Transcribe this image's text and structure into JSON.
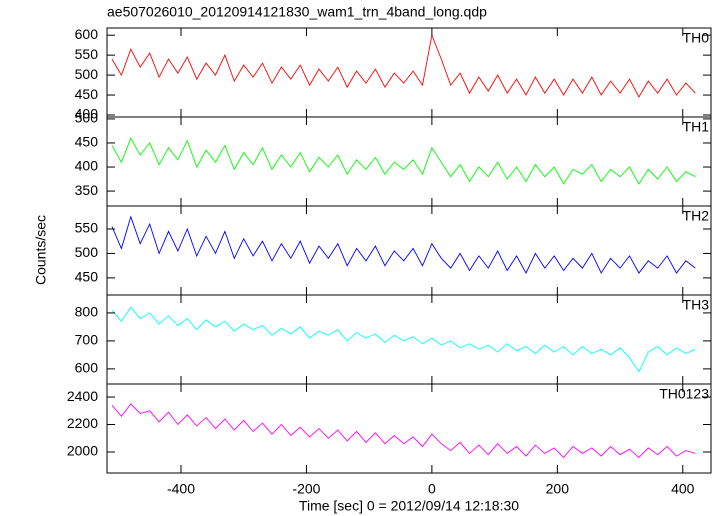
{
  "chart_data": {
    "type": "line",
    "title": "ae507026010_20120914121830_wam1_trn_4band_long.qdp",
    "xlabel": "Time [sec] 0 = 2012/09/14 12:18:30",
    "ylabel": "Counts/sec",
    "xlim": [
      -518,
      445
    ],
    "xticks": [
      -400,
      -200,
      0,
      200,
      400
    ],
    "x": [
      -510,
      -495,
      -480,
      -465,
      -450,
      -435,
      -420,
      -405,
      -390,
      -375,
      -360,
      -345,
      -330,
      -315,
      -300,
      -285,
      -270,
      -255,
      -240,
      -225,
      -210,
      -195,
      -180,
      -165,
      -150,
      -135,
      -120,
      -105,
      -90,
      -75,
      -60,
      -45,
      -30,
      -15,
      0,
      15,
      30,
      45,
      60,
      75,
      90,
      105,
      120,
      135,
      150,
      165,
      180,
      195,
      210,
      225,
      240,
      255,
      270,
      285,
      300,
      315,
      330,
      345,
      360,
      375,
      390,
      405,
      420
    ],
    "series": [
      {
        "name": "TH0",
        "color": "#ff0000",
        "ylim": [
          395,
          618
        ],
        "yticks": [
          400,
          450,
          500,
          550,
          600
        ],
        "values": [
          540,
          500,
          565,
          520,
          555,
          495,
          540,
          505,
          545,
          490,
          530,
          500,
          550,
          485,
          525,
          495,
          530,
          480,
          520,
          490,
          525,
          475,
          515,
          485,
          520,
          470,
          510,
          480,
          515,
          470,
          505,
          480,
          510,
          475,
          600,
          540,
          475,
          505,
          455,
          495,
          460,
          500,
          455,
          490,
          450,
          495,
          455,
          490,
          450,
          490,
          455,
          495,
          450,
          485,
          455,
          490,
          445,
          485,
          455,
          490,
          450,
          480,
          455
        ]
      },
      {
        "name": "TH1",
        "color": "#00ff00",
        "ylim": [
          319,
          504
        ],
        "yticks": [
          350,
          400,
          450,
          500
        ],
        "values": [
          445,
          410,
          460,
          425,
          450,
          405,
          440,
          415,
          455,
          400,
          435,
          410,
          445,
          395,
          430,
          405,
          440,
          395,
          425,
          400,
          430,
          390,
          420,
          400,
          425,
          385,
          415,
          395,
          420,
          385,
          410,
          395,
          415,
          385,
          440,
          410,
          380,
          405,
          370,
          400,
          380,
          410,
          375,
          400,
          370,
          405,
          380,
          400,
          365,
          395,
          385,
          405,
          370,
          395,
          380,
          400,
          365,
          395,
          375,
          400,
          370,
          390,
          380
        ]
      },
      {
        "name": "TH2",
        "color": "#0000ff",
        "ylim": [
          415,
          597
        ],
        "yticks": [
          450,
          500,
          550
        ],
        "values": [
          555,
          510,
          575,
          520,
          560,
          500,
          545,
          505,
          550,
          495,
          535,
          500,
          545,
          490,
          530,
          495,
          525,
          485,
          520,
          490,
          525,
          480,
          515,
          490,
          520,
          475,
          510,
          485,
          515,
          475,
          505,
          485,
          510,
          475,
          520,
          490,
          470,
          500,
          465,
          495,
          470,
          505,
          465,
          495,
          460,
          500,
          470,
          495,
          465,
          490,
          470,
          500,
          460,
          490,
          470,
          495,
          460,
          485,
          470,
          495,
          460,
          485,
          470
        ]
      },
      {
        "name": "TH3",
        "color": "#00ffff",
        "ylim": [
          546,
          864
        ],
        "yticks": [
          600,
          700,
          800
        ],
        "values": [
          810,
          770,
          820,
          780,
          800,
          760,
          790,
          755,
          780,
          740,
          775,
          750,
          770,
          735,
          760,
          740,
          755,
          720,
          745,
          725,
          750,
          710,
          735,
          720,
          740,
          700,
          730,
          710,
          725,
          695,
          720,
          700,
          715,
          690,
          710,
          685,
          700,
          675,
          690,
          670,
          685,
          660,
          690,
          665,
          680,
          655,
          685,
          660,
          680,
          650,
          680,
          655,
          670,
          650,
          675,
          640,
          590,
          660,
          680,
          650,
          675,
          655,
          670
        ]
      },
      {
        "name": "TH0123",
        "color": "#ff00ff",
        "ylim": [
          1847,
          2495
        ],
        "yticks": [
          2000,
          2200,
          2400
        ],
        "values": [
          2340,
          2260,
          2350,
          2280,
          2300,
          2220,
          2290,
          2200,
          2270,
          2190,
          2250,
          2170,
          2240,
          2160,
          2230,
          2150,
          2210,
          2130,
          2200,
          2120,
          2180,
          2110,
          2170,
          2100,
          2160,
          2080,
          2150,
          2070,
          2140,
          2060,
          2120,
          2060,
          2110,
          2040,
          2130,
          2060,
          2010,
          2070,
          1990,
          2050,
          1980,
          2060,
          1990,
          2040,
          1970,
          2050,
          1990,
          2030,
          1960,
          2040,
          1990,
          2030,
          1970,
          2040,
          1980,
          2020,
          1960,
          2030,
          1980,
          2040,
          1970,
          2010,
          1990
        ]
      }
    ]
  }
}
